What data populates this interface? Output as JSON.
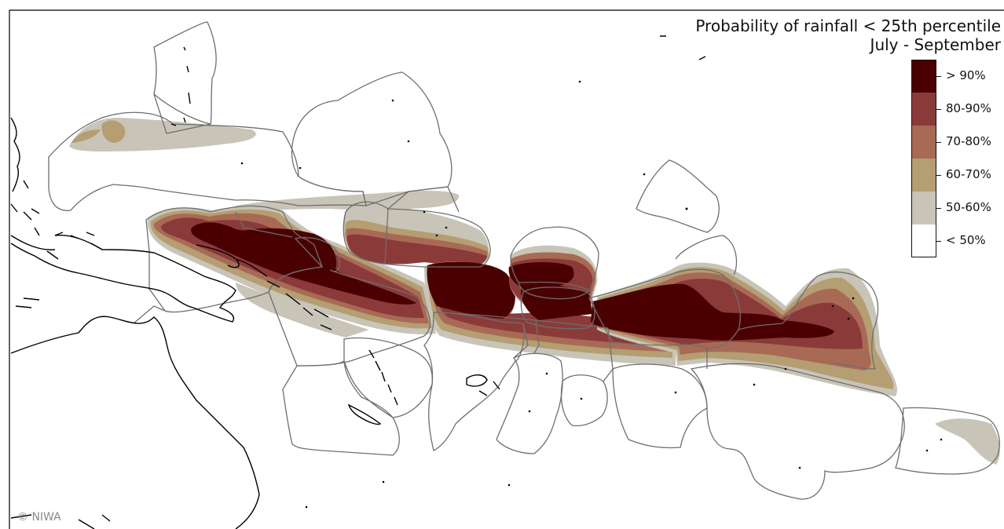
{
  "title": {
    "line1": "Probability of rainfall < 25th percentile",
    "line2": "July - September"
  },
  "legend": {
    "items": [
      {
        "label": "> 90%",
        "color": "#4a0000"
      },
      {
        "label": "80-90%",
        "color": "#8b3a3a"
      },
      {
        "label": "70-80%",
        "color": "#a86a55"
      },
      {
        "label": "60-70%",
        "color": "#b49e72"
      },
      {
        "label": "50-60%",
        "color": "#c8c4b8"
      },
      {
        "label": "< 50%",
        "color": "#ffffff"
      }
    ]
  },
  "copyright": "© NIWA",
  "colors": {
    "coastline": "#000000",
    "boundary": "#6e6e6e",
    "background": "#ffffff"
  }
}
